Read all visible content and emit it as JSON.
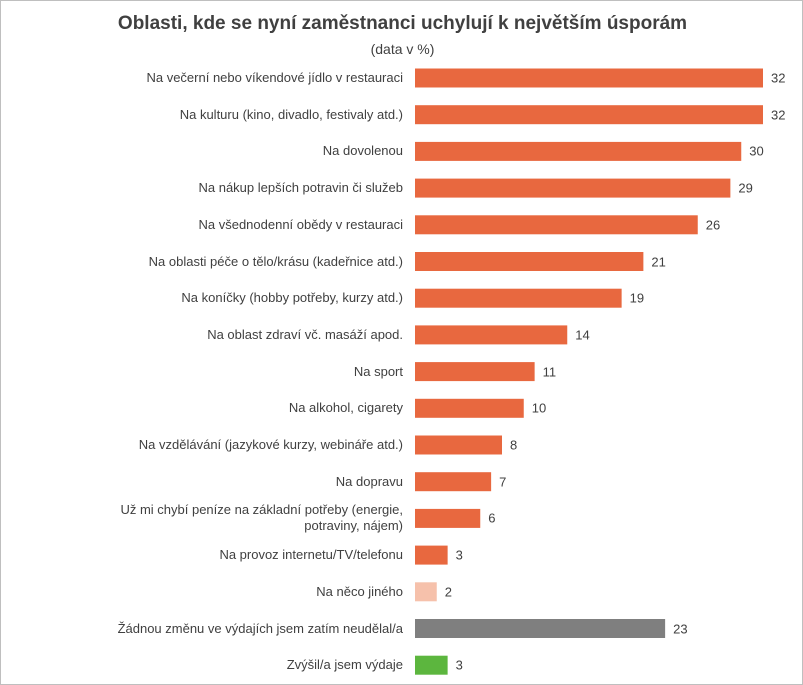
{
  "chart_data": {
    "type": "bar",
    "orientation": "horizontal",
    "title": "Oblasti, kde se nyní zaměstnanci uchylují k největším úsporám",
    "subtitle": "(data v %)",
    "categories": [
      "Na večerní nebo víkendové jídlo v restauraci",
      "Na kulturu (kino, divadlo, festivaly atd.)",
      "Na dovolenou",
      "Na nákup lepších potravin či služeb",
      "Na všednodenní obědy v restauraci",
      "Na oblasti péče o tělo/krásu (kadeřnice atd.)",
      "Na koníčky (hobby potřeby, kurzy atd.)",
      "Na oblast zdraví vč. masáží apod.",
      "Na sport",
      "Na alkohol, cigarety",
      "Na vzdělávání (jazykové kurzy, webináře atd.)",
      "Na dopravu",
      "Už mi chybí peníze na základní potřeby (energie, potraviny, nájem)",
      "Na provoz internetu/TV/telefonu",
      "Na něco jiného",
      "Žádnou změnu ve výdajích jsem zatím neudělal/a",
      "Zvýšil/a jsem výdaje"
    ],
    "values": [
      32,
      32,
      30,
      29,
      26,
      21,
      19,
      14,
      11,
      10,
      8,
      7,
      6,
      3,
      2,
      23,
      3
    ],
    "colors": [
      "#e8683f",
      "#e8683f",
      "#e8683f",
      "#e8683f",
      "#e8683f",
      "#e8683f",
      "#e8683f",
      "#e8683f",
      "#e8683f",
      "#e8683f",
      "#e8683f",
      "#e8683f",
      "#e8683f",
      "#e8683f",
      "#f6c1ab",
      "#7f7f7f",
      "#5cb63e"
    ]
  }
}
